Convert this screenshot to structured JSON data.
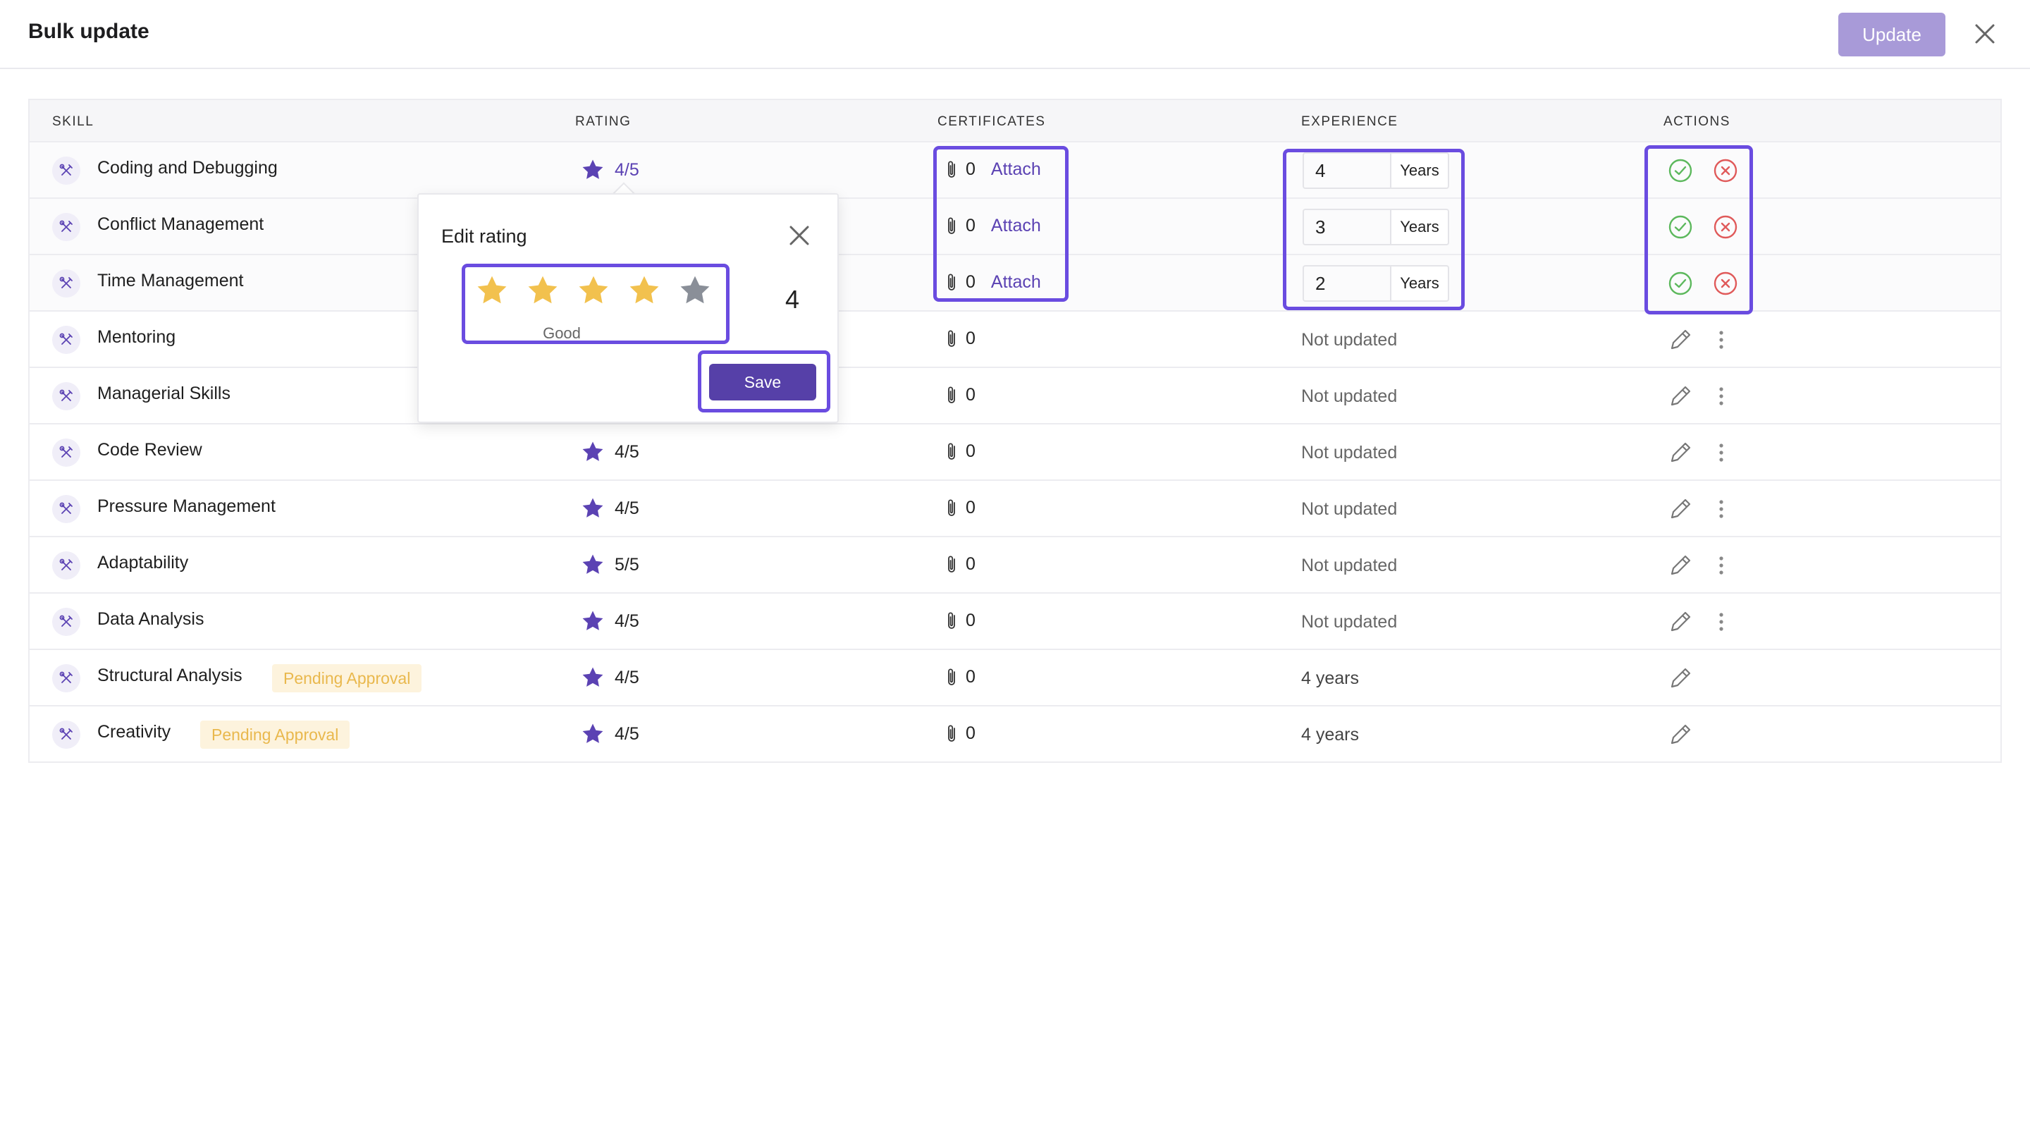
{
  "header": {
    "title": "Bulk update",
    "update_label": "Update"
  },
  "table": {
    "columns": [
      "SKILL",
      "RATING",
      "CERTIFICATES",
      "EXPERIENCE",
      "ACTIONS"
    ],
    "rows": [
      {
        "skill": "Coding and Debugging",
        "rating": "4/5",
        "certificates": "0",
        "attach": "Attach",
        "experience_value": "4",
        "experience_unit": "Years"
      },
      {
        "skill": "Conflict Management",
        "certificates": "0",
        "attach": "Attach",
        "experience_value": "3",
        "experience_unit": "Years"
      },
      {
        "skill": "Time Management",
        "certificates": "0",
        "attach": "Attach",
        "experience_value": "2",
        "experience_unit": "Years"
      },
      {
        "skill": "Mentoring",
        "certificates": "0",
        "experience": "Not updated"
      },
      {
        "skill": "Managerial Skills",
        "certificates": "0",
        "experience": "Not updated"
      },
      {
        "skill": "Code Review",
        "rating": "4/5",
        "certificates": "0",
        "experience": "Not updated"
      },
      {
        "skill": "Pressure Management",
        "rating": "4/5",
        "certificates": "0",
        "experience": "Not updated"
      },
      {
        "skill": "Adaptability",
        "rating": "5/5",
        "certificates": "0",
        "experience": "Not updated"
      },
      {
        "skill": "Data Analysis",
        "rating": "4/5",
        "certificates": "0",
        "experience": "Not updated"
      },
      {
        "skill": "Structural Analysis",
        "badge": "Pending Approval",
        "rating": "4/5",
        "certificates": "0",
        "experience": "4 years"
      },
      {
        "skill": "Creativity",
        "badge": "Pending Approval",
        "rating": "4/5",
        "certificates": "0",
        "experience": "4 years"
      }
    ]
  },
  "popover": {
    "title": "Edit rating",
    "stars_filled": 4,
    "stars_total": 5,
    "rating_label": "Good",
    "value": "4",
    "save_label": "Save"
  },
  "colors": {
    "accent": "#5b42b3",
    "star_filled": "#f2c14e",
    "star_empty": "#8a8f98",
    "highlight": "#6a4ce0",
    "check": "#5cb85c",
    "cancel": "#e05a5a"
  },
  "icons": {
    "skill": "tools-icon",
    "rating": "star-icon",
    "certificate": "paperclip-icon",
    "confirm": "check-circle-icon",
    "cancel": "x-circle-icon",
    "edit": "pencil-icon",
    "more": "more-vertical-icon",
    "close": "close-icon"
  }
}
